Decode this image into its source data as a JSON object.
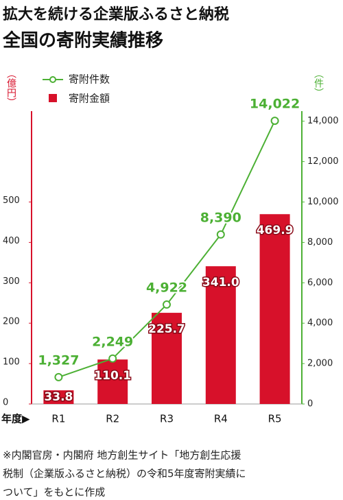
{
  "chart_data": {
    "type": "bar_line",
    "title": [
      "拡大を続ける企業版ふるさと納税",
      "全国の寄附実績推移"
    ],
    "y_label": "（億円）",
    "y2_label": "（件）",
    "x_label": "年度▶",
    "categories": [
      "R1",
      "R2",
      "R3",
      "R4",
      "R5"
    ],
    "series": [
      {
        "name": "寄附金額",
        "type": "bar",
        "color": "#d7112a",
        "axis": "y",
        "values": [
          33.8,
          110.1,
          225.7,
          341.0,
          469.9
        ],
        "value_labels": [
          "33.8",
          "110.1",
          "225.7",
          "341.0",
          "469.9"
        ]
      },
      {
        "name": "寄附件数",
        "type": "line",
        "color": "#4cb034",
        "axis": "y2",
        "values": [
          1327,
          2249,
          4922,
          8390,
          14022
        ],
        "value_labels": [
          "1,327",
          "2,249",
          "4,922",
          "8,390",
          "14,022"
        ]
      }
    ],
    "ylim": [
      0,
      725
    ],
    "yticks": [
      0,
      100,
      200,
      300,
      400,
      500
    ],
    "y2lim": [
      0,
      14500
    ],
    "y2ticks": [
      0,
      {
        "value": 2000,
        "label": "2,000"
      },
      {
        "value": 4000,
        "label": "4,000"
      },
      {
        "value": 6000,
        "label": "6,000"
      },
      {
        "value": 8000,
        "label": "8,000"
      },
      {
        "value": 10000,
        "label": "10,000"
      },
      {
        "value": 12000,
        "label": "12,000"
      },
      {
        "value": 14000,
        "label": "14,000"
      }
    ],
    "source": [
      "※内閣官房・内閣府 地方創生サイト「地方創生応援",
      "税制（企業版ふるさと納税）の令和5年度寄附実績に",
      "ついて」をもとに作成"
    ]
  }
}
